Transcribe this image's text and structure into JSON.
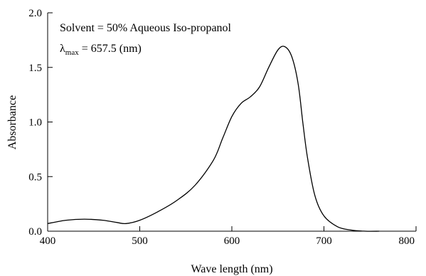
{
  "chart_data": {
    "type": "line",
    "xlabel": "Wave length (nm)",
    "ylabel": "Absorbance",
    "xlim": [
      400,
      800
    ],
    "ylim": [
      0.0,
      2.0
    ],
    "xticks": [
      400,
      500,
      600,
      700,
      800
    ],
    "xtick_labels": [
      "400",
      "500",
      "600",
      "700",
      "800"
    ],
    "yticks": [
      0.0,
      0.5,
      1.0,
      1.5,
      2.0
    ],
    "ytick_labels": [
      "0.0",
      "0.5",
      "1.0",
      "1.5",
      "2.0"
    ],
    "grid": false,
    "annotations": {
      "line1": "Solvent = 50% Aqueous Iso-propanol",
      "lambda_symbol": "λ",
      "lambda_sub": "max",
      "lambda_value": " = 657.5 (nm)"
    },
    "series": [
      {
        "x": [
          400,
          420,
          440,
          460,
          475,
          485,
          500,
          520,
          540,
          560,
          580,
          590,
          600,
          610,
          620,
          630,
          640,
          650,
          657.5,
          665,
          672,
          677,
          682,
          690,
          700,
          715,
          730,
          745,
          760
        ],
        "y": [
          0.07,
          0.1,
          0.11,
          0.1,
          0.08,
          0.07,
          0.1,
          0.18,
          0.28,
          0.42,
          0.65,
          0.85,
          1.05,
          1.17,
          1.23,
          1.32,
          1.5,
          1.66,
          1.69,
          1.6,
          1.35,
          1.0,
          0.68,
          0.33,
          0.14,
          0.04,
          0.01,
          0.0,
          0.0
        ]
      }
    ]
  }
}
